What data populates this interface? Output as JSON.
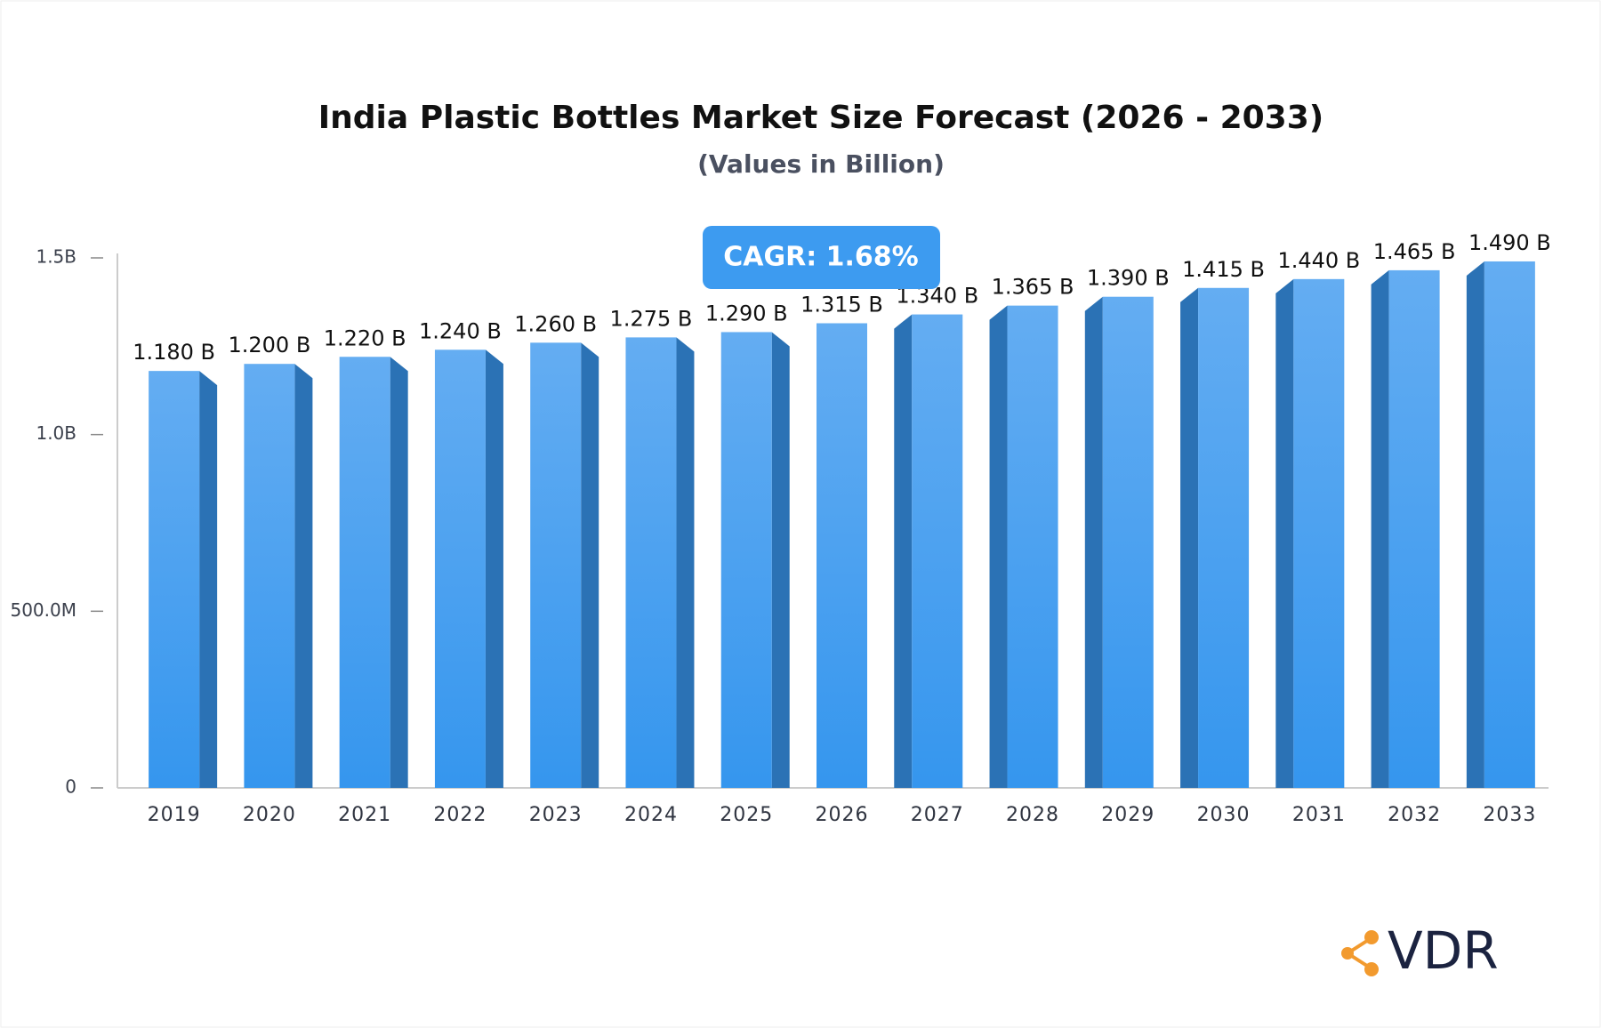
{
  "chart_data": {
    "type": "bar3d",
    "title": "India Plastic Bottles Market Size Forecast (2026 - 2033)",
    "subtitle": "(Values in Billion)",
    "annotation": "CAGR: 1.68%",
    "logo": "VDR",
    "categories": [
      "2019",
      "2020",
      "2021",
      "2022",
      "2023",
      "2024",
      "2025",
      "2026",
      "2027",
      "2028",
      "2029",
      "2030",
      "2031",
      "2032",
      "2033"
    ],
    "values": [
      1.18,
      1.2,
      1.22,
      1.24,
      1.26,
      1.275,
      1.29,
      1.315,
      1.34,
      1.365,
      1.39,
      1.415,
      1.44,
      1.465,
      1.49
    ],
    "value_labels": [
      "1.180 B",
      "1.200 B",
      "1.220 B",
      "1.240 B",
      "1.260 B",
      "1.275 B",
      "1.290 B",
      "1.315 B",
      "1.340 B",
      "1.365 B",
      "1.390 B",
      "1.415 B",
      "1.440 B",
      "1.465 B",
      "1.490 B"
    ],
    "color": "#3d9bf0",
    "ylim": [
      0,
      1.5
    ],
    "yticks": [
      0,
      {
        "value": 0.5,
        "label": "500.0M"
      },
      {
        "value": 1,
        "label": "1.0B"
      },
      {
        "value": 1.5,
        "label": "1.5B"
      }
    ]
  }
}
